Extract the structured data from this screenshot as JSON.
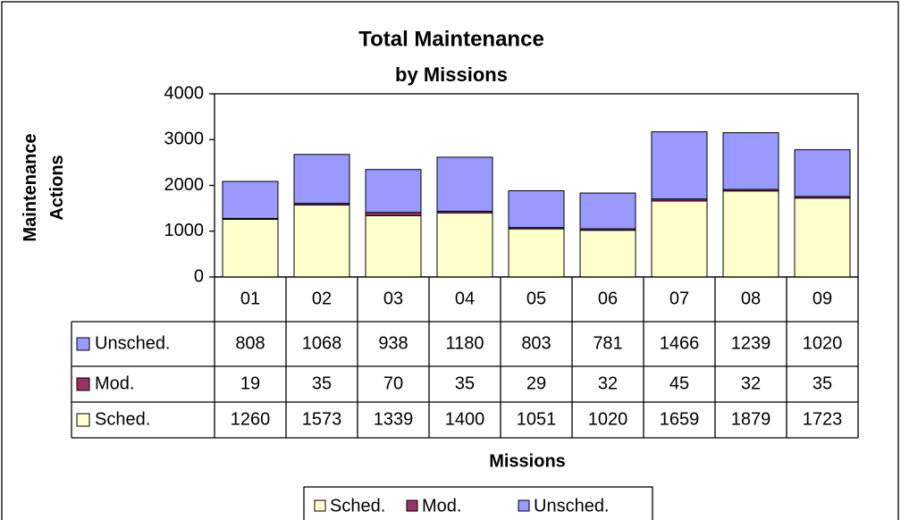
{
  "chart_data": {
    "type": "stacked_bar",
    "title": "Total Maintenance",
    "subtitle": "by Missions",
    "x_label": "Missions",
    "y_label": "Maintenance Actions",
    "categories": [
      "01",
      "02",
      "03",
      "04",
      "05",
      "06",
      "07",
      "08",
      "09"
    ],
    "series": [
      {
        "name": "Sched.",
        "color": "#ffffcc",
        "values": [
          1260,
          1573,
          1339,
          1400,
          1051,
          1020,
          1659,
          1879,
          1723
        ]
      },
      {
        "name": "Mod.",
        "color": "#993366",
        "values": [
          19,
          35,
          70,
          35,
          29,
          32,
          45,
          32,
          35
        ]
      },
      {
        "name": "Unsched.",
        "color": "#9999ff",
        "values": [
          808,
          1068,
          938,
          1180,
          803,
          781,
          1466,
          1239,
          1020
        ]
      }
    ],
    "ylim": [
      0,
      4000
    ],
    "yticks": [
      0,
      1000,
      2000,
      3000,
      4000
    ],
    "grid": false,
    "legend": "bottom"
  }
}
